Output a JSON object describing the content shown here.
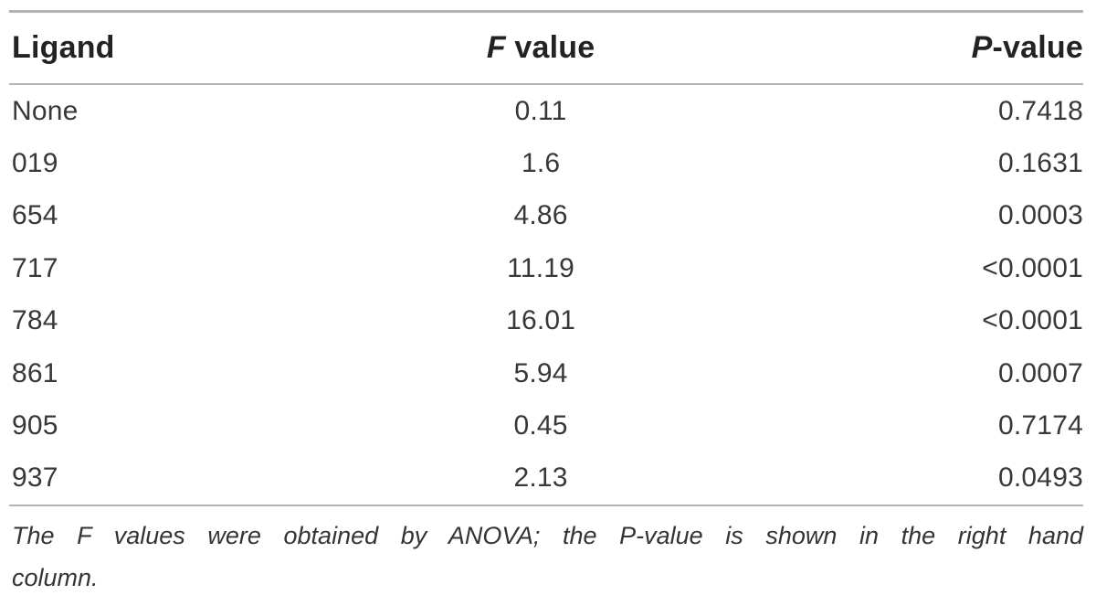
{
  "table": {
    "header": {
      "col1": "Ligand",
      "col2_italic": "F",
      "col2_rest": " value",
      "col3_italic": "P",
      "col3_rest": "-value"
    },
    "rows": [
      {
        "ligand": "None",
        "f_value": "0.11",
        "p_value": "0.7418"
      },
      {
        "ligand": "019",
        "f_value": "1.6",
        "p_value": "0.1631"
      },
      {
        "ligand": "654",
        "f_value": "4.86",
        "p_value": "0.0003"
      },
      {
        "ligand": "717",
        "f_value": "11.19",
        "p_value": "<0.0001"
      },
      {
        "ligand": "784",
        "f_value": "16.01",
        "p_value": "<0.0001"
      },
      {
        "ligand": "861",
        "f_value": "5.94",
        "p_value": "0.0007"
      },
      {
        "ligand": "905",
        "f_value": "0.45",
        "p_value": "0.7174"
      },
      {
        "ligand": "937",
        "f_value": "2.13",
        "p_value": "0.0493"
      }
    ],
    "footnote": {
      "line1": "The F values were obtained by ANOVA; the P-value is shown in the right hand",
      "line2": "column.",
      "full_text": "The F values were obtained by ANOVA; the P-value is shown in the right hand column."
    },
    "rule_color": "#b1b3b5",
    "text_color": "#37383a"
  }
}
